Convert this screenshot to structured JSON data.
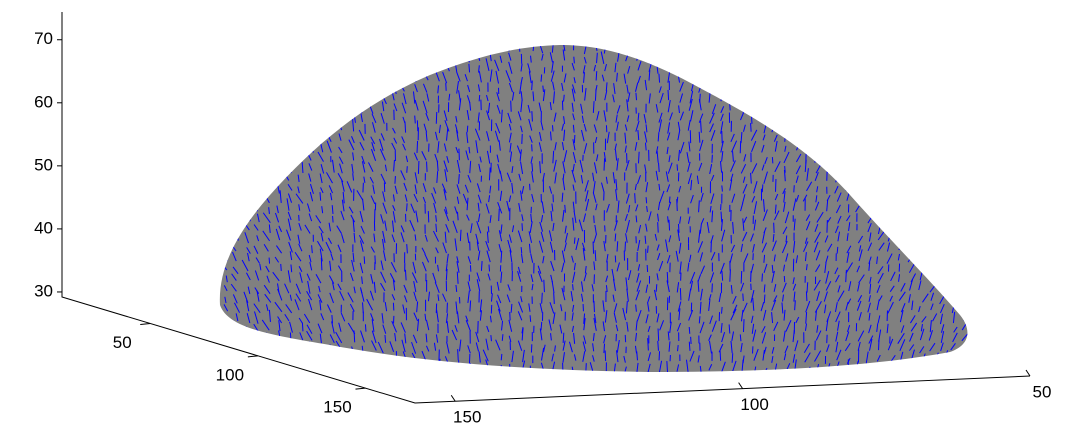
{
  "chart_data": {
    "type": "surface",
    "surface_color": "#808080",
    "arrow_color": "#0000ff",
    "zlim": [
      29.2,
      74.4
    ],
    "zticks": [
      30,
      40,
      50,
      60,
      70
    ],
    "ylim": [
      9,
      173
    ],
    "yticks": [
      50,
      100,
      150
    ],
    "xlim": [
      157,
      50
    ],
    "xticks": [
      150,
      100,
      50
    ]
  }
}
